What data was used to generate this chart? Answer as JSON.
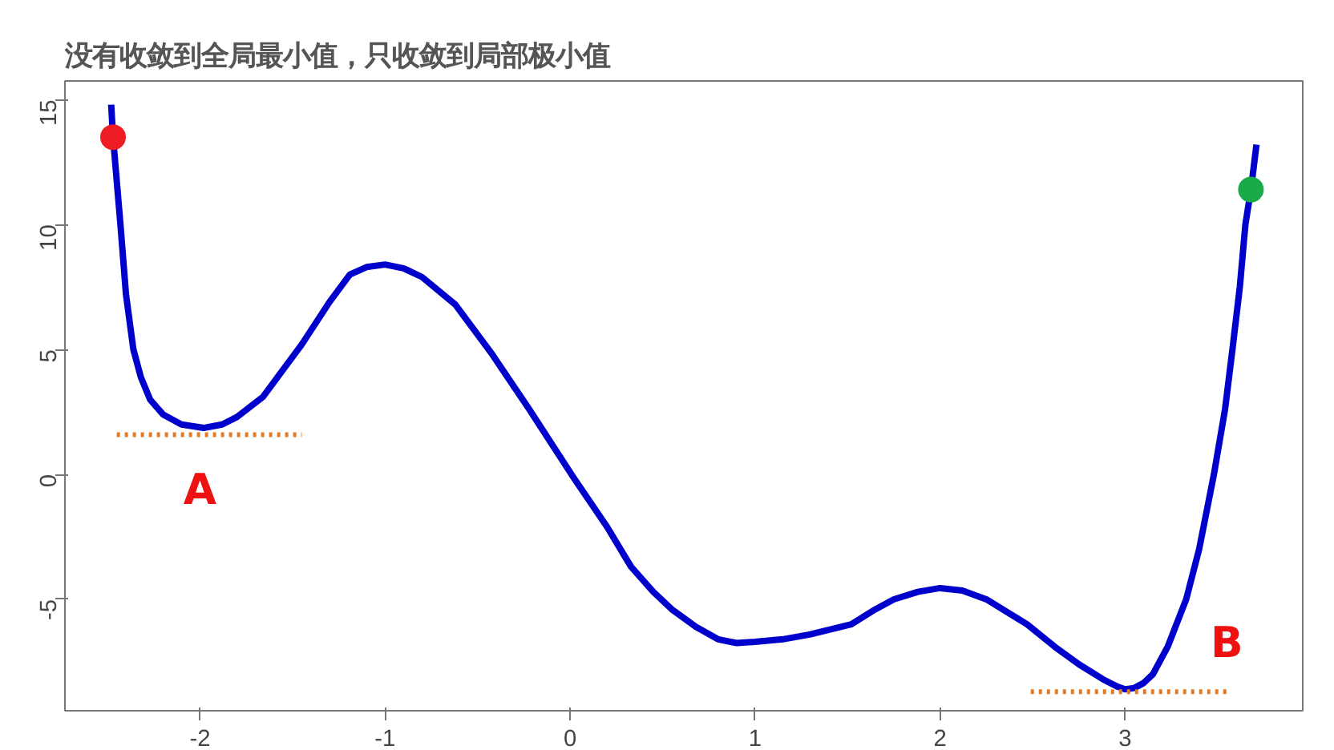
{
  "chart_data": {
    "type": "line",
    "title": "没有收敛到全局最小值，只收敛到局部极小值",
    "xlim": [
      -2.73,
      3.96
    ],
    "ylim": [
      -9.46,
      15.75
    ],
    "xticks": [
      -2,
      -1,
      0,
      1,
      2,
      3
    ],
    "yticks": [
      -5,
      0,
      5,
      10,
      15
    ],
    "grid": false,
    "series": [
      {
        "color": "#0000cc",
        "line_style": "solid",
        "x": [
          -2.48,
          -2.47,
          -2.43,
          -2.4,
          -2.36,
          -2.32,
          -2.27,
          -2.2,
          -2.1,
          -1.98,
          -1.88,
          -1.8,
          -1.66,
          -1.45,
          -1.3,
          -1.19,
          -1.1,
          -1.0,
          -0.9,
          -0.8,
          -0.62,
          -0.42,
          -0.22,
          0.02,
          0.2,
          0.33,
          0.45,
          0.55,
          0.68,
          0.8,
          0.9,
          1.0,
          1.15,
          1.3,
          1.52,
          1.65,
          1.75,
          1.88,
          2.0,
          2.12,
          2.25,
          2.47,
          2.62,
          2.75,
          2.88,
          2.96,
          3.0,
          3.05,
          3.1,
          3.15,
          3.23,
          3.33,
          3.4,
          3.48,
          3.54,
          3.58,
          3.62,
          3.65,
          3.68,
          3.71
        ],
        "values": [
          14.8,
          13.5,
          10,
          7.2,
          5,
          3.9,
          3,
          2.4,
          2.0,
          1.86,
          2.0,
          2.3,
          3.1,
          5.2,
          6.9,
          8.0,
          8.3,
          8.4,
          8.25,
          7.9,
          6.8,
          4.8,
          2.6,
          -0.14,
          -2.1,
          -3.7,
          -4.7,
          -5.4,
          -6.1,
          -6.6,
          -6.75,
          -6.7,
          -6.6,
          -6.4,
          -6.0,
          -5.4,
          -5.0,
          -4.7,
          -4.55,
          -4.65,
          -5.0,
          -6.0,
          -6.9,
          -7.6,
          -8.2,
          -8.5,
          -8.6,
          -8.55,
          -8.35,
          -8.0,
          -6.9,
          -5.0,
          -3.0,
          0,
          2.6,
          5,
          7.5,
          10,
          11.4,
          13.2
        ]
      },
      {
        "color": "#e07b2a",
        "line_style": "dotted",
        "x": [
          -2.45,
          -1.45
        ],
        "values": [
          1.59,
          1.59
        ]
      },
      {
        "color": "#e07b2a",
        "line_style": "dotted",
        "x": [
          2.49,
          3.55
        ],
        "values": [
          -8.7,
          -8.7
        ]
      },
      {
        "type": "scatter",
        "color": "#ee1c25",
        "marker": "circle",
        "x": [
          -2.47
        ],
        "values": [
          13.5
        ]
      },
      {
        "type": "scatter",
        "color": "#1aaa4a",
        "marker": "circle",
        "x": [
          3.68
        ],
        "values": [
          11.4
        ]
      }
    ],
    "annotations": [
      "A",
      "B"
    ]
  }
}
